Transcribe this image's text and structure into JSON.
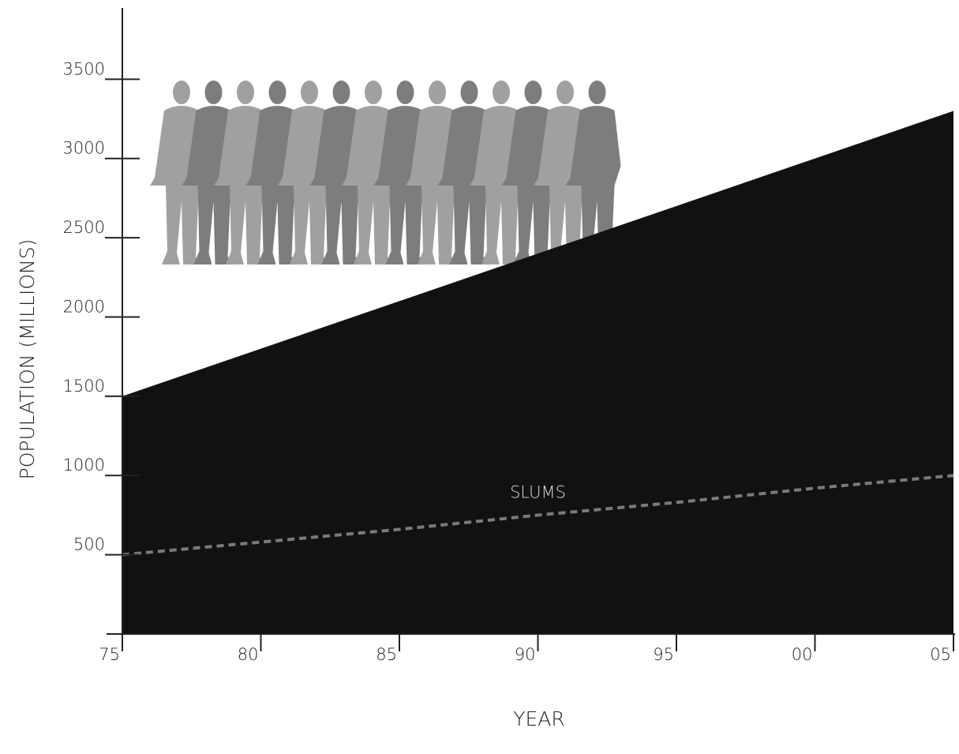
{
  "chart_data": {
    "type": "area",
    "y_label": "POPULATION (MILLIONS)",
    "x_label": "YEAR",
    "categories": [
      "75",
      "80",
      "85",
      "90",
      "95",
      "00",
      "05"
    ],
    "series": [
      {
        "color": "#111111",
        "values": [
          1500,
          1800,
          2100,
          2400,
          2700,
          3000,
          3300
        ]
      },
      {
        "name": "SLUMS",
        "color": "#7a7a7a",
        "dashed": true,
        "values": [
          500,
          580,
          660,
          750,
          830,
          920,
          1000
        ]
      }
    ],
    "ylim": [
      0,
      3950
    ],
    "yticks": [
      500,
      1000,
      1500,
      2000,
      2500,
      3000,
      3500
    ],
    "grid": false
  }
}
